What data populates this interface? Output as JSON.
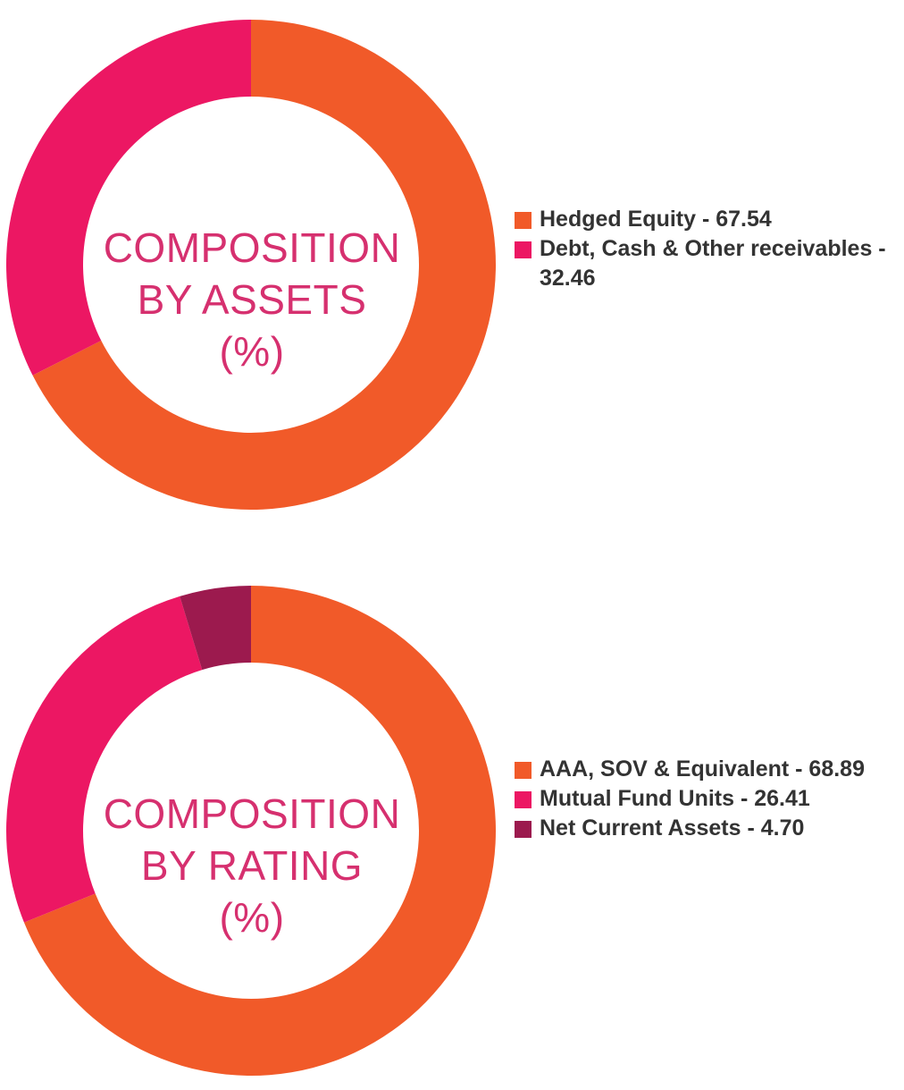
{
  "chart_data": [
    {
      "type": "pie",
      "title_lines": [
        "COMPOSITION",
        "BY ASSETS",
        "(%)"
      ],
      "categories": [
        "Hedged Equity",
        "Debt, Cash & Other receivables"
      ],
      "values": [
        67.54,
        32.46
      ],
      "colors": [
        "#f15a29",
        "#ec1763"
      ],
      "legend": [
        {
          "label": "Hedged Equity - 67.54",
          "color": "#f15a29"
        },
        {
          "label": "Debt, Cash & Other receivables - 32.46",
          "color": "#ec1763"
        }
      ],
      "legend_position": "right"
    },
    {
      "type": "pie",
      "title_lines": [
        "COMPOSITION",
        "BY RATING",
        "(%)"
      ],
      "categories": [
        "AAA, SOV & Equivalent",
        "Mutual Fund Units",
        "Net Current Assets"
      ],
      "values": [
        68.89,
        26.41,
        4.7
      ],
      "colors": [
        "#f15a29",
        "#ec1763",
        "#9c1a4e"
      ],
      "legend": [
        {
          "label": "AAA, SOV & Equivalent - 68.89",
          "color": "#f15a29"
        },
        {
          "label": "Mutual Fund Units - 26.41",
          "color": "#ec1763"
        },
        {
          "label": "Net Current Assets - 4.70",
          "color": "#9c1a4e"
        }
      ],
      "legend_position": "right"
    }
  ]
}
